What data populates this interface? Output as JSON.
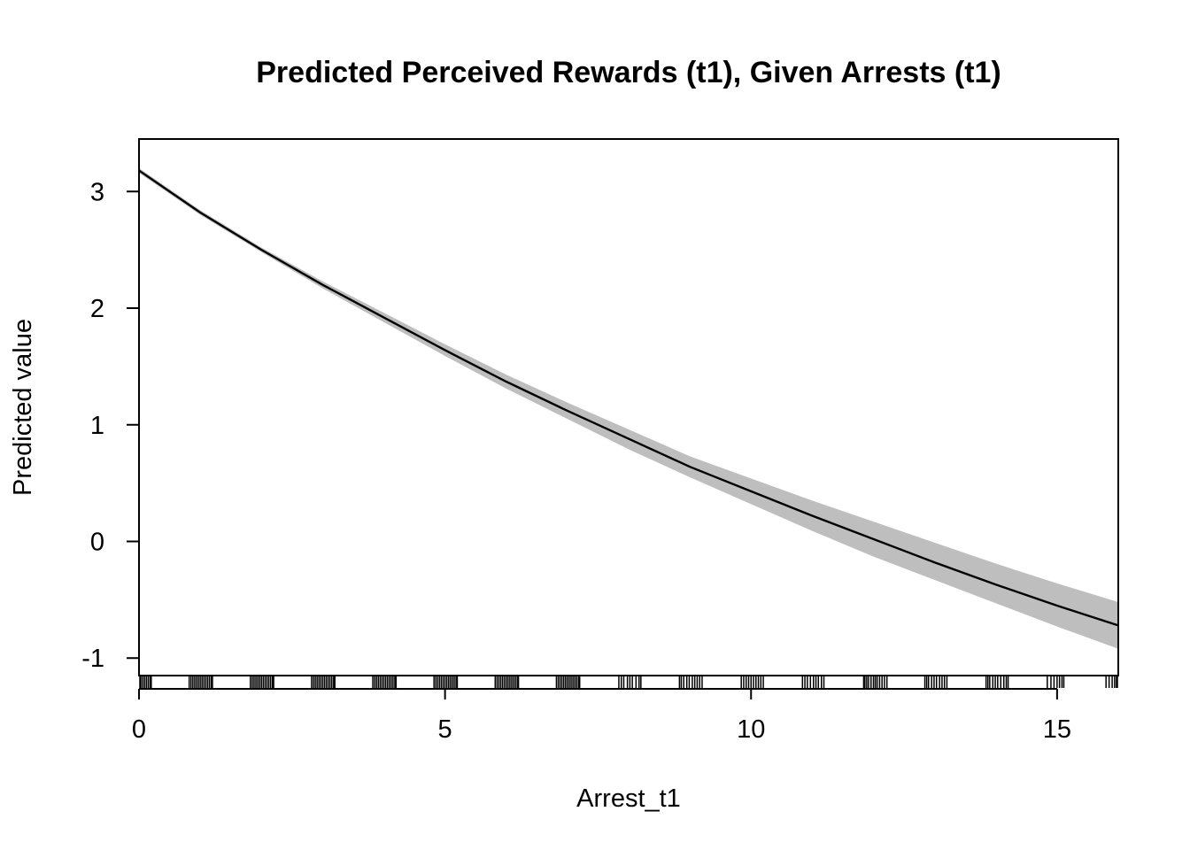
{
  "chart_data": {
    "type": "line",
    "title": "Predicted Perceived Rewards (t1), Given Arrests (t1)",
    "xlabel": "Arrest_t1",
    "ylabel": "Predicted value",
    "xlim": [
      0,
      16
    ],
    "ylim": [
      -1.15,
      3.45
    ],
    "x_ticks": [
      0,
      5,
      10,
      15
    ],
    "y_ticks": [
      -1,
      0,
      1,
      2,
      3
    ],
    "x_tick_labels": [
      "0",
      "5",
      "10",
      "15"
    ],
    "y_tick_labels": [
      "-1",
      "0",
      "1",
      "2",
      "3"
    ],
    "grid": false,
    "series": [
      {
        "name": "",
        "x": [
          0,
          1,
          2,
          3,
          4,
          5,
          6,
          7,
          8,
          9,
          10,
          11,
          12,
          13,
          14,
          15,
          16
        ],
        "y": [
          3.18,
          2.82,
          2.5,
          2.2,
          1.92,
          1.64,
          1.37,
          1.12,
          0.88,
          0.64,
          0.43,
          0.22,
          0.02,
          -0.18,
          -0.37,
          -0.55,
          -0.72
        ],
        "lower": [
          3.16,
          2.8,
          2.48,
          2.17,
          1.88,
          1.59,
          1.31,
          1.05,
          0.79,
          0.55,
          0.32,
          0.09,
          -0.13,
          -0.33,
          -0.53,
          -0.73,
          -0.92
        ],
        "upper": [
          3.2,
          2.84,
          2.52,
          2.23,
          1.96,
          1.69,
          1.43,
          1.19,
          0.96,
          0.73,
          0.54,
          0.35,
          0.17,
          -0.01,
          -0.19,
          -0.36,
          -0.52
        ]
      }
    ],
    "rug": [
      0.0,
      0.03,
      0.06,
      0.09,
      0.12,
      0.15,
      0.18,
      0.2,
      0.82,
      0.85,
      0.88,
      0.91,
      0.94,
      0.97,
      1.0,
      1.03,
      1.06,
      1.09,
      1.12,
      1.15,
      1.18,
      1.2,
      1.82,
      1.85,
      1.88,
      1.91,
      1.94,
      1.97,
      2.0,
      2.03,
      2.06,
      2.09,
      2.12,
      2.15,
      2.18,
      2.2,
      2.82,
      2.85,
      2.88,
      2.91,
      2.94,
      2.97,
      3.0,
      3.03,
      3.06,
      3.09,
      3.12,
      3.15,
      3.18,
      3.2,
      3.82,
      3.85,
      3.88,
      3.91,
      3.94,
      3.97,
      4.0,
      4.03,
      4.06,
      4.09,
      4.12,
      4.15,
      4.18,
      4.2,
      4.82,
      4.85,
      4.88,
      4.91,
      4.94,
      4.97,
      5.0,
      5.03,
      5.06,
      5.09,
      5.12,
      5.15,
      5.18,
      5.2,
      5.82,
      5.85,
      5.88,
      5.91,
      5.94,
      5.97,
      6.0,
      6.03,
      6.06,
      6.09,
      6.12,
      6.15,
      6.18,
      6.2,
      6.82,
      6.85,
      6.88,
      6.91,
      6.94,
      6.97,
      7.0,
      7.03,
      7.06,
      7.09,
      7.12,
      7.15,
      7.18,
      7.2,
      7.84,
      7.88,
      7.92,
      7.98,
      8.02,
      8.06,
      8.12,
      8.17,
      8.2,
      8.83,
      8.86,
      8.9,
      8.95,
      8.99,
      9.04,
      9.08,
      9.12,
      9.16,
      9.2,
      9.84,
      9.88,
      9.92,
      9.96,
      10.0,
      10.04,
      10.08,
      10.12,
      10.16,
      10.2,
      10.84,
      10.88,
      10.92,
      10.97,
      11.02,
      11.06,
      11.1,
      11.15,
      11.19,
      11.84,
      11.86,
      11.89,
      11.92,
      11.96,
      12.0,
      12.03,
      12.06,
      12.1,
      12.14,
      12.18,
      12.22,
      12.84,
      12.87,
      12.9,
      12.95,
      12.99,
      13.03,
      13.08,
      13.12,
      13.16,
      13.2,
      13.84,
      13.87,
      13.9,
      13.95,
      13.99,
      14.03,
      14.08,
      14.13,
      14.17,
      14.2,
      14.84,
      14.9,
      14.95,
      15.0,
      15.04,
      15.08,
      15.11,
      15.8,
      15.85,
      15.9,
      15.94,
      15.97,
      16.0
    ]
  }
}
